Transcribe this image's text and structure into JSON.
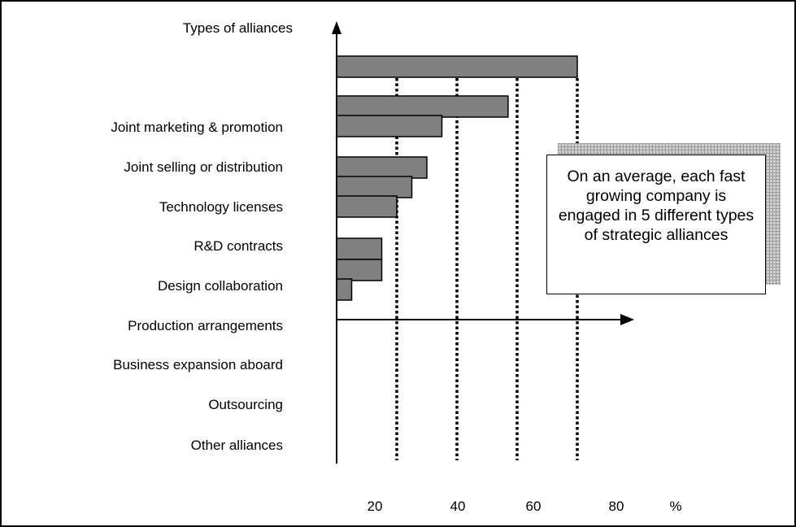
{
  "chart_data": {
    "type": "bar",
    "orientation": "horizontal",
    "y_axis_title": "Types of alliances",
    "x_unit_label": "%",
    "categories": [
      "Joint marketing & promotion",
      "Joint selling or distribution",
      "Technology licenses",
      "R&D contracts",
      "Design collaboration",
      "Production arrangements",
      "Business expansion aboard",
      "Outsourcing",
      "Other alliances"
    ],
    "values": [
      80,
      57,
      35,
      30,
      25,
      20,
      15,
      15,
      5
    ],
    "x_ticks": [
      "20",
      "40",
      "60",
      "80"
    ],
    "xlim": [
      0,
      93
    ],
    "gridlines": "dotted vertical",
    "bar_color": "#808080",
    "annotation": "On an average, each fast growing company is engaged in 5 different types of strategic alliances"
  }
}
